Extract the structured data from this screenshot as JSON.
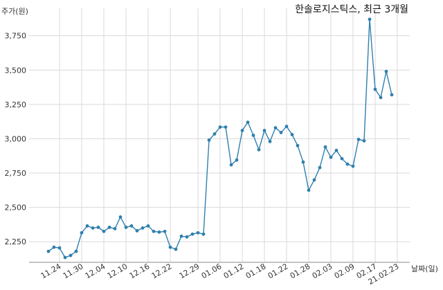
{
  "chart_data": {
    "type": "line",
    "title": "한솔로지스틱스, 최근 3개월",
    "ylabel": "주가(원)",
    "xlabel": "날짜(일)",
    "ylim": [
      2100,
      3950
    ],
    "yticks": [
      2250,
      2500,
      2750,
      3000,
      3250,
      3500,
      3750
    ],
    "ytick_labels": [
      "2,250",
      "2,500",
      "2,750",
      "3,000",
      "3,250",
      "3,500",
      "3,750"
    ],
    "x_tick_labels": [
      "11.24",
      "11.30",
      "12.04",
      "12.10",
      "12.16",
      "12.22",
      "12.29",
      "01.06",
      "01.12",
      "01.18",
      "01.22",
      "01.28",
      "02.03",
      "02.09",
      "02.17",
      "21.02.23"
    ],
    "x_tick_indices": [
      2,
      6,
      10,
      14,
      18,
      22,
      27,
      31,
      35,
      39,
      43,
      47,
      51,
      55,
      59,
      63
    ],
    "grid": true,
    "series": [
      {
        "color": "#2f7fae",
        "values": [
          2180,
          2210,
          2205,
          2135,
          2150,
          2180,
          2315,
          2365,
          2350,
          2355,
          2325,
          2355,
          2345,
          2430,
          2355,
          2365,
          2330,
          2350,
          2365,
          2325,
          2320,
          2325,
          2210,
          2195,
          2290,
          2285,
          2305,
          2315,
          2305,
          2990,
          3035,
          3085,
          3085,
          2810,
          2845,
          3060,
          3120,
          3025,
          2920,
          3060,
          2980,
          3080,
          3045,
          3090,
          3030,
          2950,
          2830,
          2625,
          2700,
          2790,
          2940,
          2865,
          2915,
          2855,
          2815,
          2800,
          2995,
          2985,
          3870,
          3360,
          3300,
          3490,
          3320
        ]
      }
    ]
  }
}
